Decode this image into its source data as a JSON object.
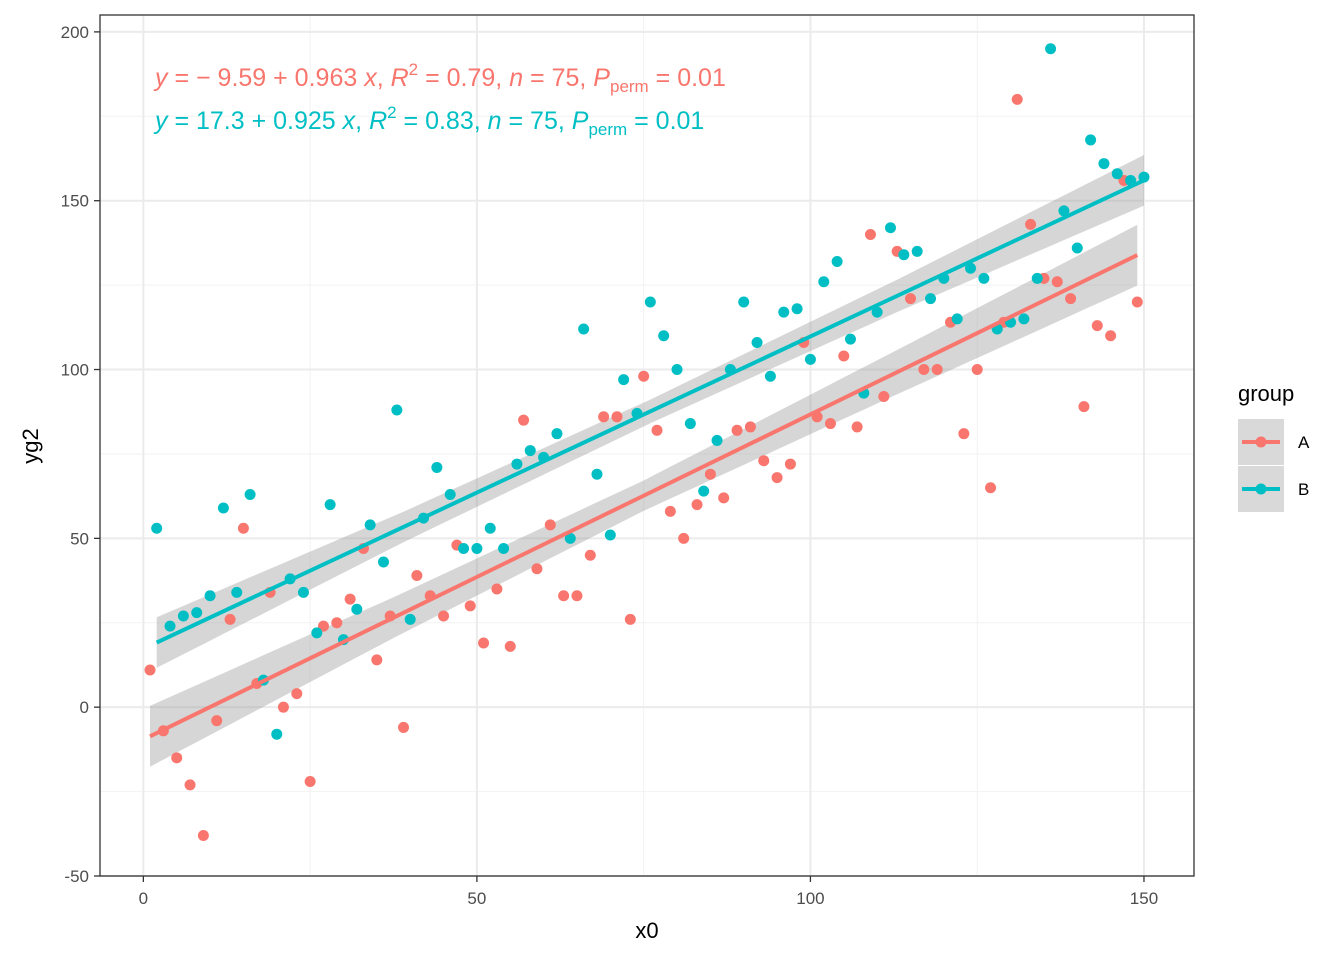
{
  "chart_data": {
    "type": "scatter",
    "xlabel": "x0",
    "ylabel": "yg2",
    "xlim": [
      -6.5,
      157.5
    ],
    "ylim": [
      -50,
      205
    ],
    "x_ticks": [
      0,
      50,
      100,
      150
    ],
    "y_ticks": [
      -50,
      0,
      50,
      100,
      150,
      200
    ],
    "x_tick_labels": [
      "0",
      "50",
      "100",
      "150"
    ],
    "y_tick_labels": [
      "-50",
      "0",
      "50",
      "100",
      "150",
      "200"
    ],
    "grid": true,
    "legend": {
      "title": "group",
      "position": "right",
      "entries": [
        "A",
        "B"
      ]
    },
    "series": [
      {
        "name": "A",
        "color": "#F8766D",
        "fit": {
          "intercept": -9.59,
          "slope": 0.963,
          "x_range": [
            1,
            149
          ],
          "band_halfwidth": [
            9,
            6,
            4.5,
            6.5,
            9
          ]
        },
        "equation": {
          "y": "y",
          "eq1": " = − 9.59 + 0.963 ",
          "x": "x",
          "sep1": ", ",
          "R": "R",
          "two": "2",
          "eq2": " = 0.79, ",
          "n": "n",
          "eq3": " = 75, ",
          "P": "P",
          "perm": "perm",
          "eq4": " = 0.01"
        },
        "points": [
          [
            1,
            11
          ],
          [
            3,
            -7
          ],
          [
            5,
            -15
          ],
          [
            7,
            -23
          ],
          [
            9,
            -38
          ],
          [
            11,
            -4
          ],
          [
            13,
            26
          ],
          [
            15,
            53
          ],
          [
            17,
            7
          ],
          [
            19,
            34
          ],
          [
            21,
            0
          ],
          [
            23,
            4
          ],
          [
            25,
            -22
          ],
          [
            27,
            24
          ],
          [
            29,
            25
          ],
          [
            31,
            32
          ],
          [
            33,
            47
          ],
          [
            35,
            14
          ],
          [
            37,
            27
          ],
          [
            39,
            -6
          ],
          [
            41,
            39
          ],
          [
            43,
            33
          ],
          [
            45,
            27
          ],
          [
            47,
            48
          ],
          [
            49,
            30
          ],
          [
            51,
            19
          ],
          [
            53,
            35
          ],
          [
            55,
            18
          ],
          [
            57,
            85
          ],
          [
            59,
            41
          ],
          [
            61,
            54
          ],
          [
            63,
            33
          ],
          [
            65,
            33
          ],
          [
            67,
            45
          ],
          [
            69,
            86
          ],
          [
            71,
            86
          ],
          [
            73,
            26
          ],
          [
            75,
            98
          ],
          [
            77,
            82
          ],
          [
            79,
            58
          ],
          [
            81,
            50
          ],
          [
            83,
            60
          ],
          [
            85,
            69
          ],
          [
            87,
            62
          ],
          [
            89,
            82
          ],
          [
            91,
            83
          ],
          [
            93,
            73
          ],
          [
            95,
            68
          ],
          [
            97,
            72
          ],
          [
            99,
            108
          ],
          [
            101,
            86
          ],
          [
            103,
            84
          ],
          [
            105,
            104
          ],
          [
            107,
            83
          ],
          [
            109,
            140
          ],
          [
            111,
            92
          ],
          [
            113,
            135
          ],
          [
            115,
            121
          ],
          [
            117,
            100
          ],
          [
            119,
            100
          ],
          [
            121,
            114
          ],
          [
            123,
            81
          ],
          [
            125,
            100
          ],
          [
            127,
            65
          ],
          [
            129,
            114
          ],
          [
            131,
            180
          ],
          [
            133,
            143
          ],
          [
            135,
            127
          ],
          [
            137,
            126
          ],
          [
            139,
            121
          ],
          [
            141,
            89
          ],
          [
            143,
            113
          ],
          [
            145,
            110
          ],
          [
            147,
            156
          ],
          [
            149,
            120
          ]
        ]
      },
      {
        "name": "B",
        "color": "#00BFC4",
        "fit": {
          "intercept": 17.3,
          "slope": 0.925,
          "x_range": [
            2,
            150
          ],
          "band_halfwidth": [
            7.5,
            4.5,
            3.5,
            4.8,
            7.5
          ]
        },
        "equation": {
          "y": "y",
          "eq1": " = 17.3 + 0.925 ",
          "x": "x",
          "sep1": ", ",
          "R": "R",
          "two": "2",
          "eq2": " = 0.83, ",
          "n": "n",
          "eq3": " = 75, ",
          "P": "P",
          "perm": "perm",
          "eq4": " = 0.01"
        },
        "points": [
          [
            2,
            53
          ],
          [
            4,
            24
          ],
          [
            6,
            27
          ],
          [
            8,
            28
          ],
          [
            10,
            33
          ],
          [
            12,
            59
          ],
          [
            14,
            34
          ],
          [
            16,
            63
          ],
          [
            18,
            8
          ],
          [
            20,
            -8
          ],
          [
            22,
            38
          ],
          [
            24,
            34
          ],
          [
            26,
            22
          ],
          [
            28,
            60
          ],
          [
            30,
            20
          ],
          [
            32,
            29
          ],
          [
            34,
            54
          ],
          [
            36,
            43
          ],
          [
            38,
            88
          ],
          [
            40,
            26
          ],
          [
            42,
            56
          ],
          [
            44,
            71
          ],
          [
            46,
            63
          ],
          [
            48,
            47
          ],
          [
            50,
            47
          ],
          [
            52,
            53
          ],
          [
            54,
            47
          ],
          [
            56,
            72
          ],
          [
            58,
            76
          ],
          [
            60,
            74
          ],
          [
            62,
            81
          ],
          [
            64,
            50
          ],
          [
            66,
            112
          ],
          [
            68,
            69
          ],
          [
            70,
            51
          ],
          [
            72,
            97
          ],
          [
            74,
            87
          ],
          [
            76,
            120
          ],
          [
            78,
            110
          ],
          [
            80,
            100
          ],
          [
            82,
            84
          ],
          [
            84,
            64
          ],
          [
            86,
            79
          ],
          [
            88,
            100
          ],
          [
            90,
            120
          ],
          [
            92,
            108
          ],
          [
            94,
            98
          ],
          [
            96,
            117
          ],
          [
            98,
            118
          ],
          [
            100,
            103
          ],
          [
            102,
            126
          ],
          [
            104,
            132
          ],
          [
            106,
            109
          ],
          [
            108,
            93
          ],
          [
            110,
            117
          ],
          [
            112,
            142
          ],
          [
            114,
            134
          ],
          [
            116,
            135
          ],
          [
            118,
            121
          ],
          [
            120,
            127
          ],
          [
            122,
            115
          ],
          [
            124,
            130
          ],
          [
            126,
            127
          ],
          [
            128,
            112
          ],
          [
            130,
            114
          ],
          [
            132,
            115
          ],
          [
            134,
            127
          ],
          [
            136,
            195
          ],
          [
            138,
            147
          ],
          [
            140,
            136
          ],
          [
            142,
            168
          ],
          [
            144,
            161
          ],
          [
            146,
            158
          ],
          [
            148,
            156
          ],
          [
            150,
            157
          ]
        ]
      }
    ]
  }
}
